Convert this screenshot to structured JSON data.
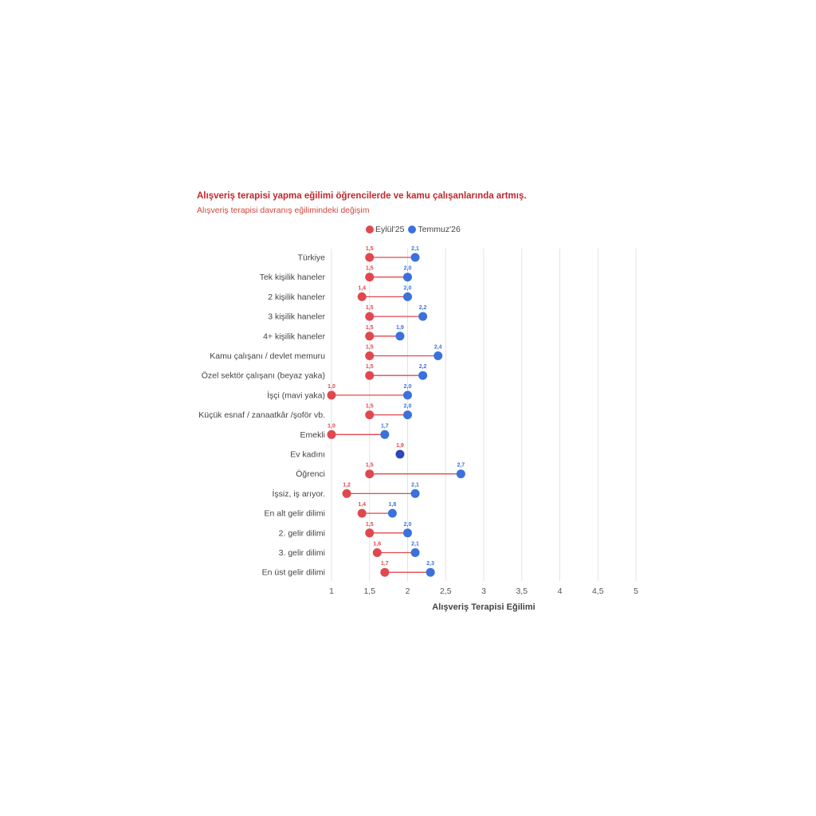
{
  "title": "Alışveriş terapisi yapma eğilimi öğrencilerde ve kamu çalışanlarında artmış.",
  "subtitle": "Alışveriş terapisi davranış eğilimindeki değişim",
  "colors": {
    "series1": "#e0484f",
    "series2": "#3b71dd",
    "overlap": "#2f47b8",
    "title": "#c0282d"
  },
  "legend": [
    {
      "label": "Eylül'25",
      "color": "#e0484f"
    },
    {
      "label": "Temmuz'26",
      "color": "#3b71dd"
    }
  ],
  "chart_data": {
    "type": "dumbbell",
    "title": "Alışveriş terapisi yapma eğilimi öğrencilerde ve kamu çalışanlarında artmış.",
    "subtitle": "Alışveriş terapisi davranış eğilimindeki değişim",
    "xlabel": "Alışveriş Terapisi Eğilimi",
    "ylabel": "",
    "xlim": [
      1,
      5
    ],
    "xticks": [
      "1",
      "1,5",
      "2",
      "2,5",
      "3",
      "3,5",
      "4",
      "4,5",
      "5"
    ],
    "xtick_values": [
      1,
      1.5,
      2,
      2.5,
      3,
      3.5,
      4,
      4.5,
      5
    ],
    "grid": "vertical",
    "legend_position": "top",
    "categories": [
      "Türkiye",
      "Tek kişilik haneler",
      "2 kişilik haneler",
      "3 kişilik haneler",
      "4+ kişilik haneler",
      "Kamu çalışanı / devlet memuru",
      "Özel sektör çalışanı (beyaz yaka)",
      "İşçi (mavi yaka)",
      "Küçük esnaf / zanaatkâr /şoför vb.",
      "Emekli",
      "Ev kadını",
      "Öğrenci",
      "İşsiz, iş arıyor.",
      "En alt gelir dilimi",
      "2. gelir dilimi",
      "3. gelir dilimi",
      "En üst gelir dilimi"
    ],
    "series": [
      {
        "name": "Eylül'25",
        "values": [
          1.5,
          1.5,
          1.4,
          1.5,
          1.5,
          1.5,
          1.5,
          1.0,
          1.5,
          1.0,
          1.9,
          1.5,
          1.2,
          1.4,
          1.5,
          1.6,
          1.7
        ],
        "labels": [
          "1,5",
          "1,5",
          "1,4",
          "1,5",
          "1,5",
          "1,5",
          "1,5",
          "1,0",
          "1,5",
          "1,0",
          "1,9",
          "1,5",
          "1,2",
          "1,4",
          "1,5",
          "1,6",
          "1,7"
        ]
      },
      {
        "name": "Temmuz'26",
        "values": [
          2.1,
          2.0,
          2.0,
          2.2,
          1.9,
          2.4,
          2.2,
          2.0,
          2.0,
          1.7,
          1.9,
          2.7,
          2.1,
          1.8,
          2.0,
          2.1,
          2.3
        ],
        "labels": [
          "2,1",
          "2,0",
          "2,0",
          "2,2",
          "1,9",
          "2,4",
          "2,2",
          "2,0",
          "2,0",
          "1,7",
          "",
          "2,7",
          "2,1",
          "1,8",
          "2,0",
          "2,1",
          "2,3"
        ]
      }
    ]
  }
}
